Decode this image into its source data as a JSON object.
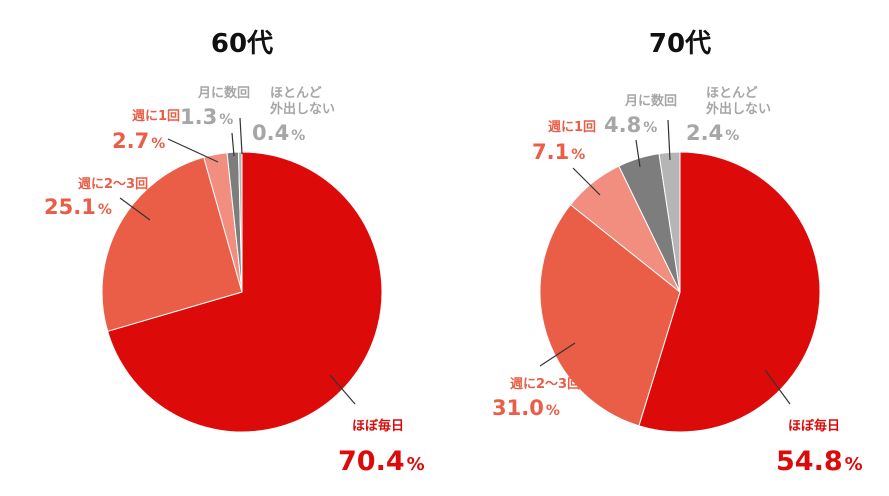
{
  "chart_data": [
    {
      "type": "pie",
      "title": "60代",
      "slices": [
        {
          "label": "ほぼ毎日",
          "value_text": "70.4",
          "unit": "%",
          "value": 70.4,
          "color": "#dd0a0a"
        },
        {
          "label": "週に2〜3回",
          "value_text": "25.1",
          "unit": "%",
          "value": 25.1,
          "color": "#ea5e47"
        },
        {
          "label": "週に1回",
          "value_text": "2.7",
          "unit": "%",
          "value": 2.7,
          "color": "#f28e80"
        },
        {
          "label": "月に数回",
          "value_text": "1.3",
          "unit": "%",
          "value": 1.3,
          "color": "#7d7d7d"
        },
        {
          "label": "ほとんど外出しない",
          "label_lines": [
            "ほとんど",
            "外出しない"
          ],
          "value_text": "0.4",
          "unit": "%",
          "value": 0.4,
          "color": "#b5b5b5"
        }
      ]
    },
    {
      "type": "pie",
      "title": "70代",
      "slices": [
        {
          "label": "ほぼ毎日",
          "value_text": "54.8",
          "unit": "%",
          "value": 54.8,
          "color": "#dd0a0a"
        },
        {
          "label": "週に2〜3回",
          "value_text": "31.0",
          "unit": "%",
          "value": 31.0,
          "color": "#ea5e47"
        },
        {
          "label": "週に1回",
          "value_text": "7.1",
          "unit": "%",
          "value": 7.1,
          "color": "#f28e80"
        },
        {
          "label": "月に数回",
          "value_text": "4.8",
          "unit": "%",
          "value": 4.8,
          "color": "#7d7d7d"
        },
        {
          "label": "ほとんど外出しない",
          "label_lines": [
            "ほとんど",
            "外出しない"
          ],
          "value_text": "2.4",
          "unit": "%",
          "value": 2.4,
          "color": "#b5b5b5"
        }
      ]
    }
  ],
  "label_colors": {
    "red": "#dd0a0a",
    "coral": "#ea5e47",
    "gray": "#a6a6a6"
  }
}
